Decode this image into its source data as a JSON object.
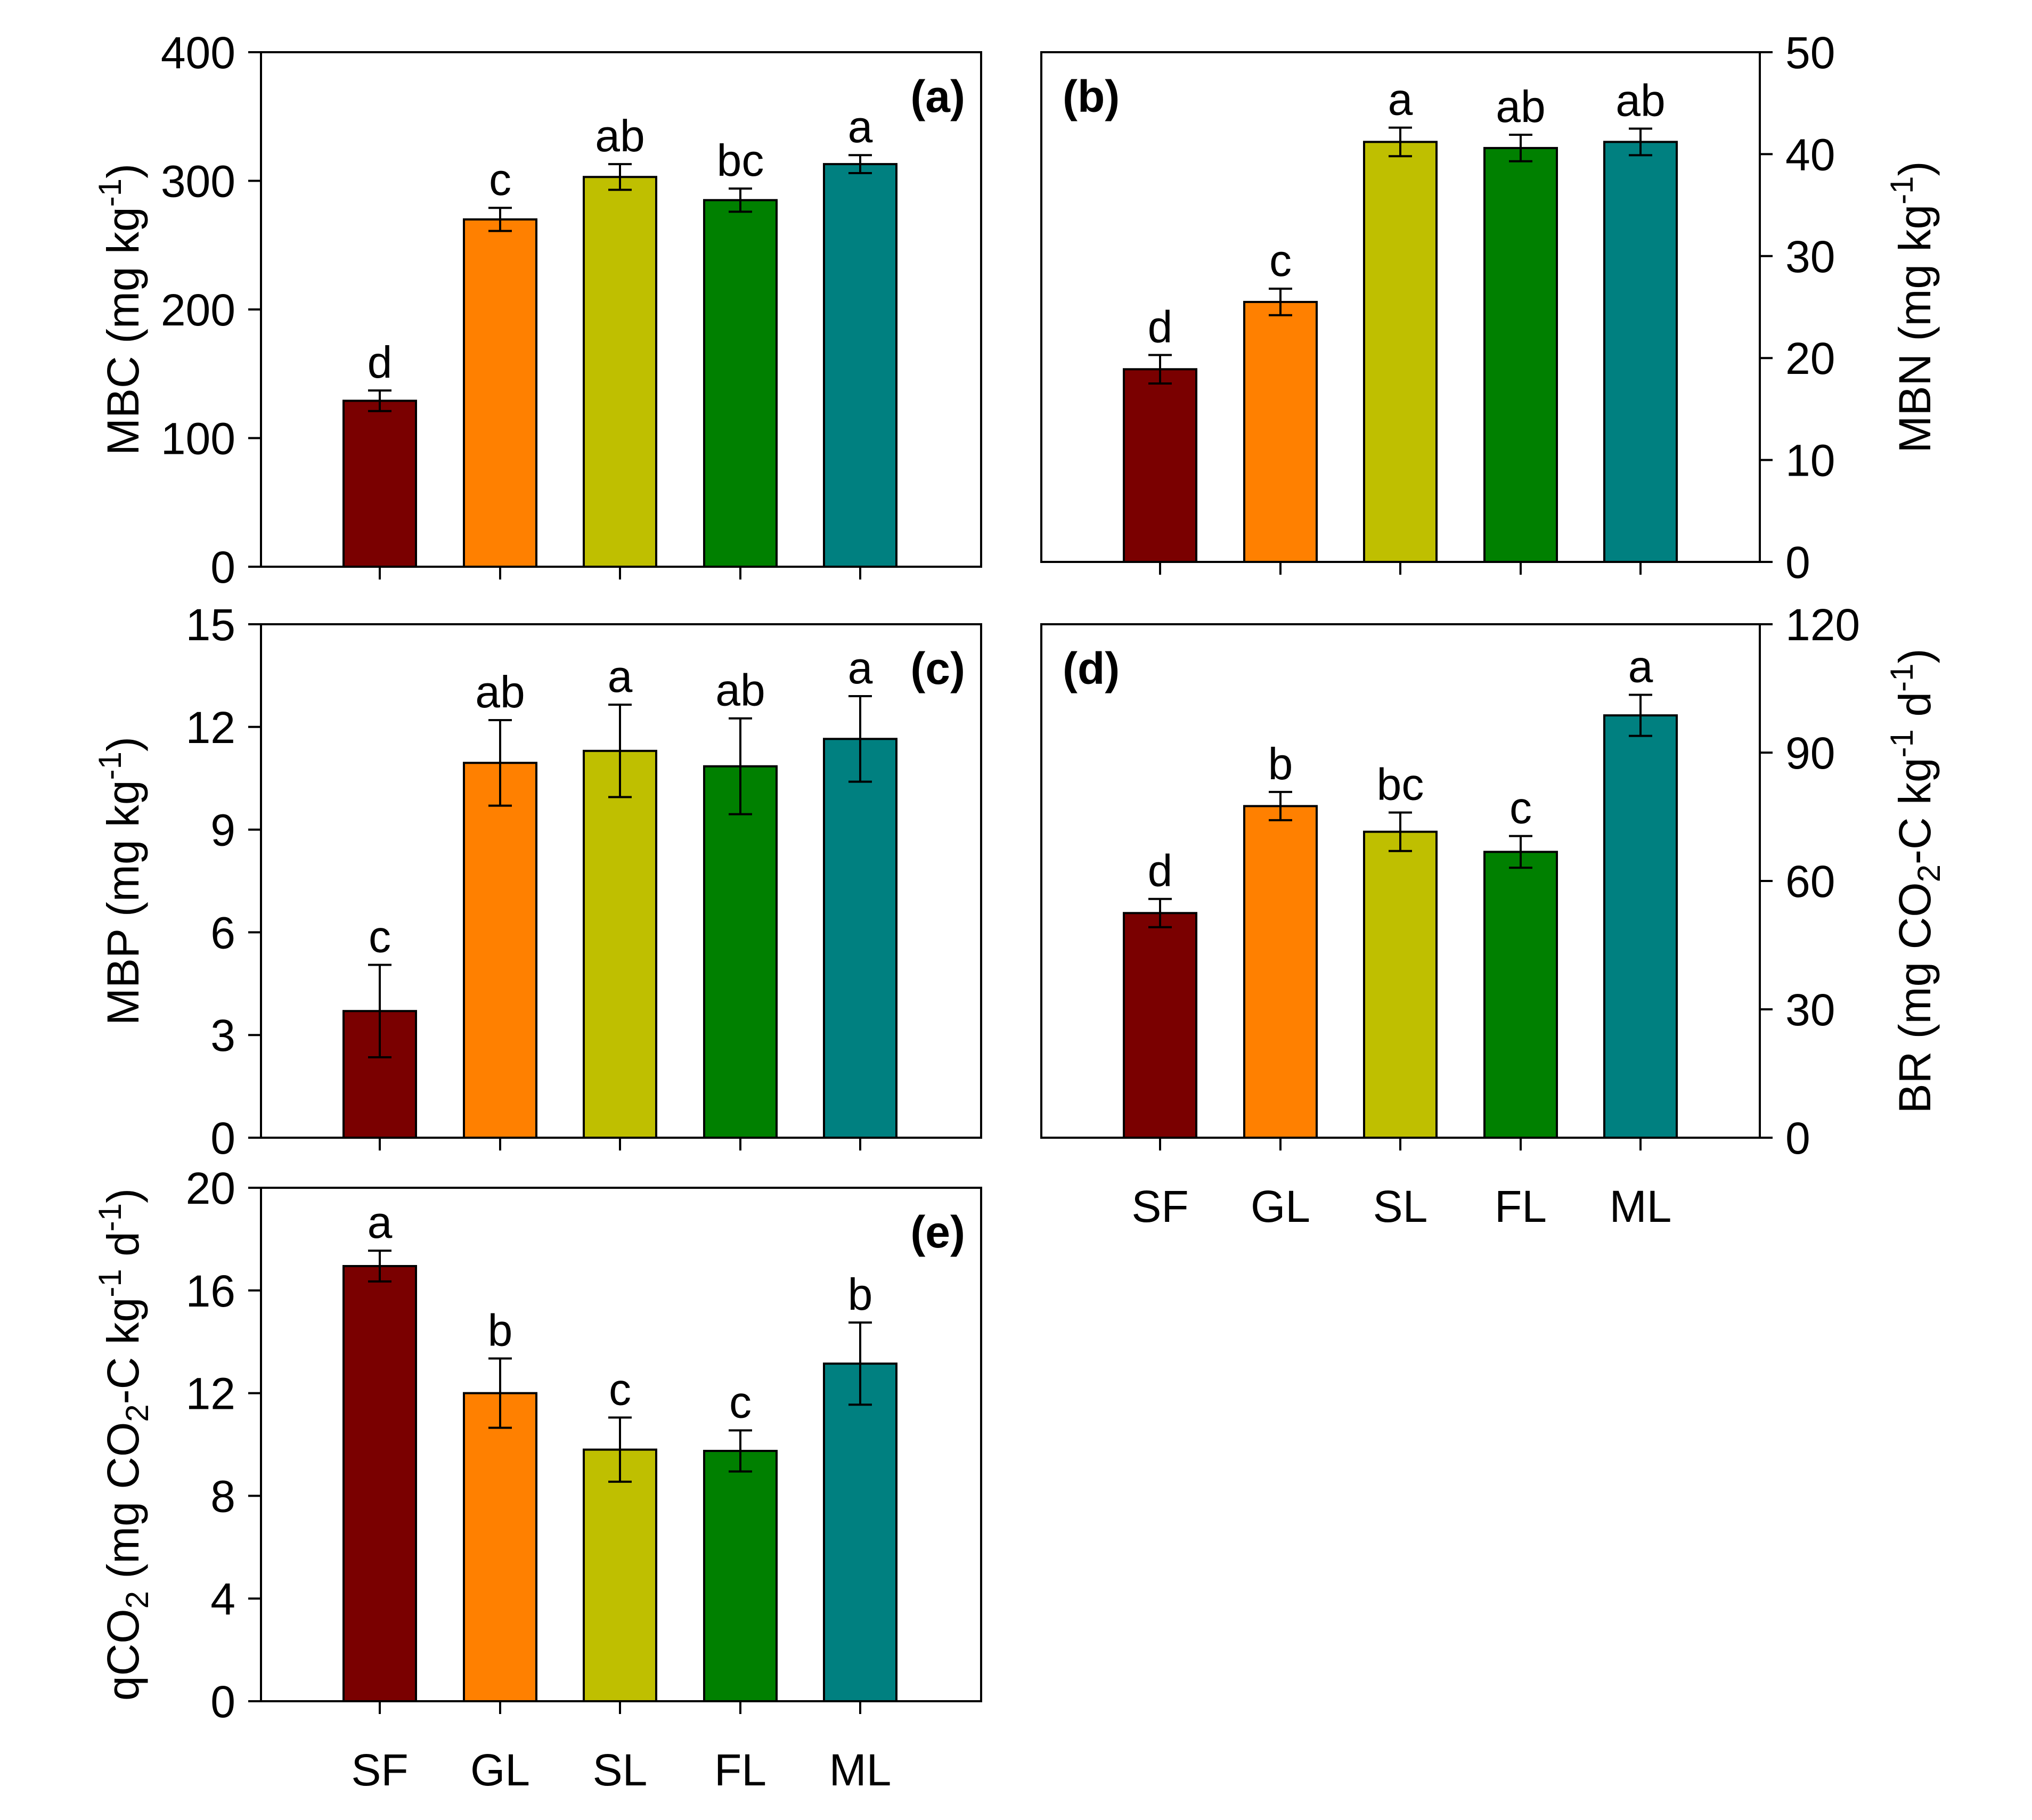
{
  "figure": {
    "categories": [
      "SF",
      "GL",
      "SL",
      "FL",
      "ML"
    ],
    "bar_colors": [
      "#7a0000",
      "#ff8000",
      "#bfbf00",
      "#008000",
      "#008080"
    ]
  },
  "chart_data": [
    {
      "id": "a",
      "type": "bar",
      "panel_label": "(a)",
      "ylabel": "MBC (mg kg⁻¹)",
      "ylabel_parts": [
        {
          "t": "MBC (mg kg"
        },
        {
          "t": "-1",
          "sup": true
        },
        {
          "t": ")"
        }
      ],
      "axis_side": "left",
      "ylim": [
        0,
        400
      ],
      "yticks": [
        0,
        100,
        200,
        300,
        400
      ],
      "categories": [
        "SF",
        "GL",
        "SL",
        "FL",
        "ML"
      ],
      "show_xlabels": false,
      "values": [
        129,
        270,
        303,
        285,
        313
      ],
      "errors": [
        8,
        9,
        10,
        9,
        7
      ],
      "significance": [
        "d",
        "c",
        "ab",
        "bc",
        "a"
      ]
    },
    {
      "id": "b",
      "type": "bar",
      "panel_label": "(b)",
      "ylabel": "MBN (mg kg⁻¹)",
      "ylabel_parts": [
        {
          "t": "MBN (mg kg"
        },
        {
          "t": "-1",
          "sup": true
        },
        {
          "t": ")"
        }
      ],
      "axis_side": "right",
      "ylim": [
        0,
        50
      ],
      "yticks": [
        0,
        10,
        20,
        30,
        40,
        50
      ],
      "categories": [
        "SF",
        "GL",
        "SL",
        "FL",
        "ML"
      ],
      "show_xlabels": false,
      "values": [
        18.9,
        25.5,
        41.2,
        40.6,
        41.2
      ],
      "errors": [
        1.4,
        1.3,
        1.4,
        1.3,
        1.3
      ],
      "significance": [
        "d",
        "c",
        "a",
        "ab",
        "ab"
      ]
    },
    {
      "id": "c",
      "type": "bar",
      "panel_label": "(c)",
      "ylabel": "MBP (mg kg⁻¹)",
      "ylabel_parts": [
        {
          "t": "MBP (mg kg"
        },
        {
          "t": "-1",
          "sup": true
        },
        {
          "t": ")"
        }
      ],
      "axis_side": "left",
      "ylim": [
        0,
        15
      ],
      "yticks": [
        0,
        3,
        6,
        9,
        12,
        15
      ],
      "categories": [
        "SF",
        "GL",
        "SL",
        "FL",
        "ML"
      ],
      "show_xlabels": false,
      "values": [
        3.7,
        10.95,
        11.3,
        10.85,
        11.65
      ],
      "errors": [
        1.35,
        1.25,
        1.35,
        1.4,
        1.25
      ],
      "significance": [
        "c",
        "ab",
        "a",
        "ab",
        "a"
      ]
    },
    {
      "id": "d",
      "type": "bar",
      "panel_label": "(d)",
      "ylabel": "BR (mg CO₂-C kg⁻¹ d⁻¹)",
      "ylabel_parts": [
        {
          "t": "BR (mg CO"
        },
        {
          "t": "2",
          "sub": true
        },
        {
          "t": "-C kg"
        },
        {
          "t": "-1",
          "sup": true
        },
        {
          "t": " d"
        },
        {
          "t": "-1",
          "sup": true
        },
        {
          "t": ")"
        }
      ],
      "axis_side": "right",
      "ylim": [
        0,
        120
      ],
      "yticks": [
        0,
        30,
        60,
        90,
        120
      ],
      "categories": [
        "SF",
        "GL",
        "SL",
        "FL",
        "ML"
      ],
      "show_xlabels": true,
      "values": [
        52.5,
        77.5,
        71.5,
        66.8,
        98.7
      ],
      "errors": [
        3.3,
        3.3,
        4.5,
        3.7,
        4.8
      ],
      "significance": [
        "d",
        "b",
        "bc",
        "c",
        "a"
      ]
    },
    {
      "id": "e",
      "type": "bar",
      "panel_label": "(e)",
      "ylabel": "qCO₂ (mg CO₂-C kg⁻¹ d⁻¹)",
      "ylabel_parts": [
        {
          "t": "qCO"
        },
        {
          "t": "2",
          "sub": true
        },
        {
          "t": " (mg CO"
        },
        {
          "t": "2",
          "sub": true
        },
        {
          "t": "-C kg"
        },
        {
          "t": "-1",
          "sup": true
        },
        {
          "t": " d"
        },
        {
          "t": "-1",
          "sup": true
        },
        {
          "t": ")"
        }
      ],
      "axis_side": "left",
      "ylim": [
        0,
        20
      ],
      "yticks": [
        0,
        4,
        8,
        12,
        16,
        20
      ],
      "categories": [
        "SF",
        "GL",
        "SL",
        "FL",
        "ML"
      ],
      "show_xlabels": true,
      "values": [
        16.95,
        12.0,
        9.8,
        9.75,
        13.15
      ],
      "errors": [
        0.6,
        1.35,
        1.25,
        0.8,
        1.6
      ],
      "significance": [
        "a",
        "b",
        "c",
        "c",
        "b"
      ]
    }
  ]
}
